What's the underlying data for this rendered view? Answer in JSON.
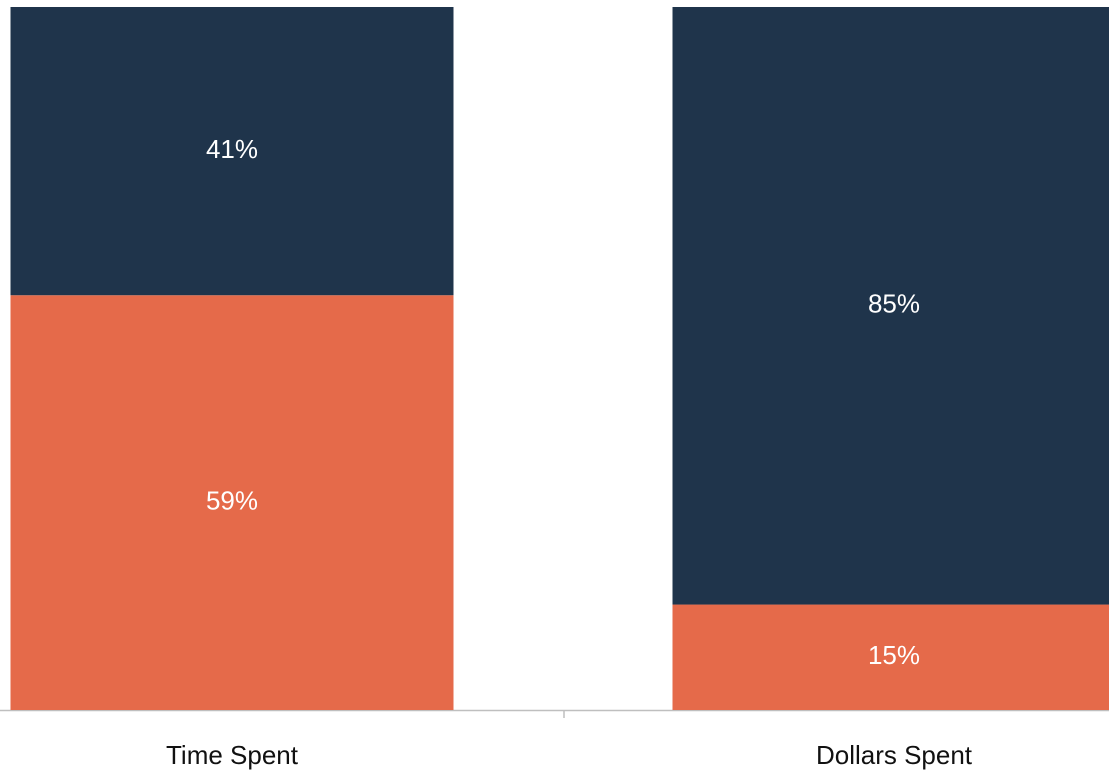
{
  "chart_data": {
    "type": "stacked_bar",
    "categories": [
      "Time Spent",
      "Dollars Spent"
    ],
    "series": [
      {
        "color": "#e56a4a",
        "values": [
          59,
          15
        ],
        "value_labels": [
          "59%",
          "15%"
        ]
      },
      {
        "color": "#1f344b",
        "values": [
          41,
          85
        ],
        "value_labels": [
          "41%",
          "85%"
        ]
      }
    ],
    "ylim": [
      0,
      100
    ]
  }
}
